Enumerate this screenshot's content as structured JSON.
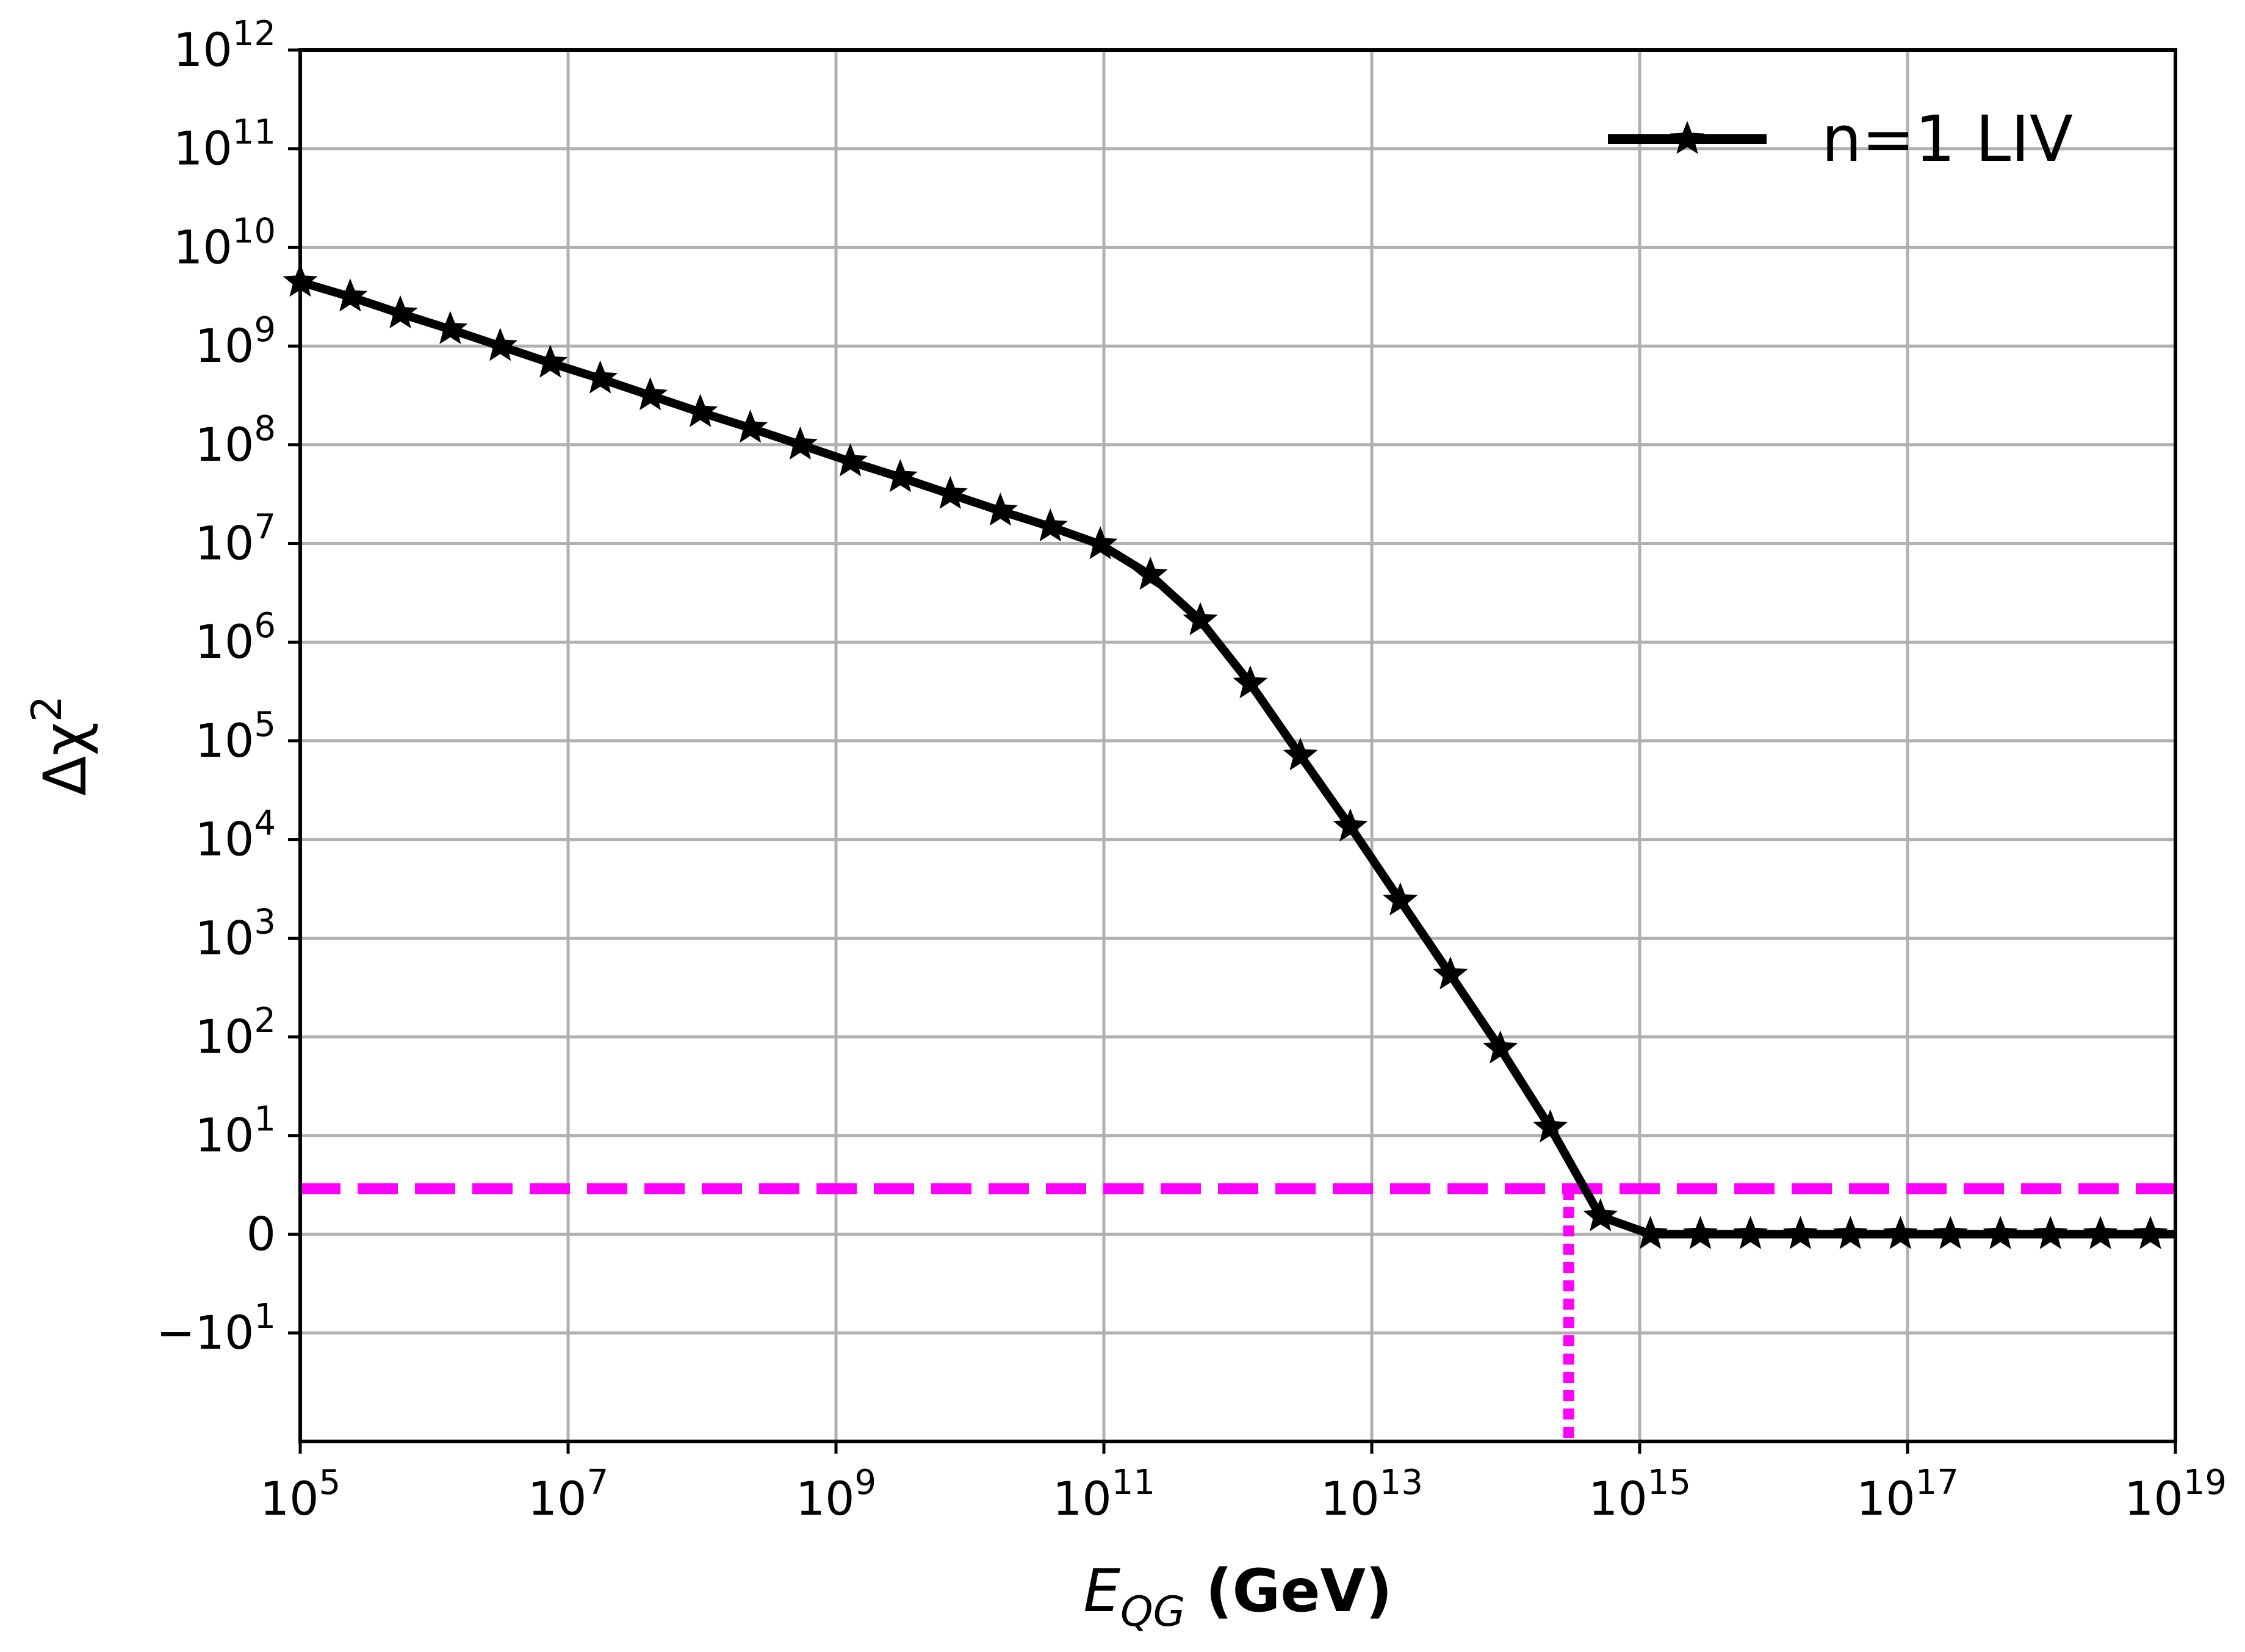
{
  "chart_data": {
    "type": "line",
    "title": "",
    "xlabel": {
      "symbol": "E",
      "subscript": "QG",
      "unit": " (GeV)"
    },
    "ylabel": {
      "prefix": "Δχ",
      "sup": "2"
    },
    "xscale": "log",
    "yscale": "symlog",
    "xlim_log10": [
      5,
      19
    ],
    "x_ticks": [
      {
        "base": "10",
        "exp": "5"
      },
      {
        "base": "10",
        "exp": "7"
      },
      {
        "base": "10",
        "exp": "9"
      },
      {
        "base": "10",
        "exp": "11"
      },
      {
        "base": "10",
        "exp": "13"
      },
      {
        "base": "10",
        "exp": "15"
      },
      {
        "base": "10",
        "exp": "17"
      },
      {
        "base": "10",
        "exp": "19"
      }
    ],
    "y_ticks": [
      {
        "prefix": "",
        "base": "10",
        "exp": "12"
      },
      {
        "prefix": "",
        "base": "10",
        "exp": "11"
      },
      {
        "prefix": "",
        "base": "10",
        "exp": "10"
      },
      {
        "prefix": "",
        "base": "10",
        "exp": "9"
      },
      {
        "prefix": "",
        "base": "10",
        "exp": "8"
      },
      {
        "prefix": "",
        "base": "10",
        "exp": "7"
      },
      {
        "prefix": "",
        "base": "10",
        "exp": "6"
      },
      {
        "prefix": "",
        "base": "10",
        "exp": "5"
      },
      {
        "prefix": "",
        "base": "10",
        "exp": "4"
      },
      {
        "prefix": "",
        "base": "10",
        "exp": "3"
      },
      {
        "prefix": "",
        "base": "10",
        "exp": "2"
      },
      {
        "prefix": "",
        "base": "10",
        "exp": "1"
      },
      {
        "prefix": "",
        "base": "0",
        "exp": ""
      },
      {
        "prefix": "−",
        "base": "10",
        "exp": "1"
      }
    ],
    "grid": true,
    "legend_position": "top-right",
    "series": [
      {
        "name": "n=1 LIV",
        "color": "#000000",
        "marker": "star",
        "log10_x": [
          5.0,
          5.373,
          5.747,
          6.12,
          6.493,
          6.867,
          7.24,
          7.613,
          7.987,
          8.36,
          8.733,
          9.107,
          9.48,
          9.853,
          10.227,
          10.6,
          10.973,
          11.347,
          11.72,
          12.093,
          12.467,
          12.84,
          13.213,
          13.587,
          13.96,
          14.333,
          14.707,
          15.08,
          15.453,
          15.827,
          16.2,
          16.573,
          16.947,
          17.32,
          17.693,
          18.067,
          18.44,
          18.813
        ],
        "y_symlog_coord": [
          9.65,
          9.5,
          9.33,
          9.17,
          9.0,
          8.83,
          8.67,
          8.5,
          8.33,
          8.17,
          8.0,
          7.83,
          7.67,
          7.5,
          7.33,
          7.17,
          6.99,
          6.68,
          6.22,
          5.58,
          4.85,
          4.13,
          3.38,
          2.63,
          1.88,
          1.08,
          0.18,
          0.0,
          0.0,
          0.0,
          0.0,
          0.0,
          0.0,
          0.0,
          0.0,
          0.0,
          0.0,
          0.0
        ]
      }
    ],
    "threshold_hline": {
      "y_symlog_coord": 0.46,
      "color": "#ff00ff",
      "style": "dashed"
    },
    "threshold_vline": {
      "log10_x": 14.47,
      "color": "#ff00ff",
      "style": "dotted"
    }
  }
}
